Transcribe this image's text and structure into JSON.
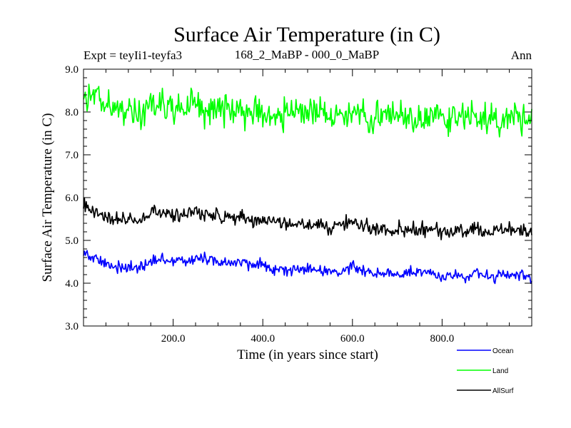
{
  "chart_data": {
    "type": "line",
    "title": "Surface Air Temperature (in C)",
    "subtitle_left": "Expt = teyIi1-teyfa3",
    "subtitle_center": "168_2_MaBP - 000_0_MaBP",
    "subtitle_right": "Ann",
    "xlabel": "Time (in years since start)",
    "ylabel": "Surface Air Temperature (in C)",
    "xlim": [
      0,
      1000
    ],
    "ylim": [
      3.0,
      9.0
    ],
    "xticks": [
      200,
      400,
      600,
      800
    ],
    "xtick_labels": [
      "200.0",
      "400.0",
      "600.0",
      "800.0"
    ],
    "yticks": [
      3,
      4,
      5,
      6,
      7,
      8,
      9
    ],
    "ytick_labels": [
      "3.0",
      "4.0",
      "5.0",
      "6.0",
      "7.0",
      "8.0",
      "9.0"
    ],
    "legend_position": "below-right",
    "series": [
      {
        "name": "Ocean",
        "color": "#0000ff",
        "x": [
          0,
          25,
          50,
          75,
          100,
          125,
          150,
          175,
          200,
          225,
          250,
          275,
          300,
          325,
          350,
          375,
          400,
          425,
          450,
          475,
          500,
          525,
          550,
          575,
          600,
          625,
          650,
          675,
          700,
          725,
          750,
          775,
          800,
          825,
          850,
          875,
          900,
          925,
          950,
          975,
          1000
        ],
        "values": [
          4.75,
          4.55,
          4.45,
          4.4,
          4.35,
          4.35,
          4.5,
          4.55,
          4.55,
          4.5,
          4.6,
          4.55,
          4.5,
          4.45,
          4.5,
          4.4,
          4.45,
          4.35,
          4.3,
          4.35,
          4.3,
          4.3,
          4.25,
          4.3,
          4.4,
          4.3,
          4.25,
          4.25,
          4.2,
          4.25,
          4.2,
          4.25,
          4.15,
          4.2,
          4.15,
          4.25,
          4.15,
          4.15,
          4.2,
          4.15,
          4.1
        ]
      },
      {
        "name": "Land",
        "color": "#00ff00",
        "x": [
          0,
          25,
          50,
          75,
          100,
          125,
          150,
          175,
          200,
          225,
          250,
          275,
          300,
          325,
          350,
          375,
          400,
          425,
          450,
          475,
          500,
          525,
          550,
          575,
          600,
          625,
          650,
          675,
          700,
          725,
          750,
          775,
          800,
          825,
          850,
          875,
          900,
          925,
          950,
          975,
          1000
        ],
        "values": [
          8.55,
          8.4,
          8.2,
          8.05,
          8.0,
          8.0,
          8.15,
          8.2,
          8.1,
          8.1,
          8.2,
          8.1,
          8.05,
          8.05,
          8.05,
          8.0,
          8.0,
          7.95,
          7.95,
          8.0,
          8.0,
          7.95,
          7.95,
          7.9,
          8.0,
          7.95,
          7.9,
          7.95,
          7.9,
          7.9,
          7.8,
          7.9,
          7.9,
          7.85,
          7.85,
          7.9,
          7.85,
          7.8,
          7.85,
          7.85,
          7.85
        ]
      },
      {
        "name": "AllSurf",
        "color": "#000000",
        "x": [
          0,
          25,
          50,
          75,
          100,
          125,
          150,
          175,
          200,
          225,
          250,
          275,
          300,
          325,
          350,
          375,
          400,
          425,
          450,
          475,
          500,
          525,
          550,
          575,
          600,
          625,
          650,
          675,
          700,
          725,
          750,
          775,
          800,
          825,
          850,
          875,
          900,
          925,
          950,
          975,
          1000
        ],
        "values": [
          5.85,
          5.65,
          5.55,
          5.5,
          5.45,
          5.45,
          5.6,
          5.65,
          5.6,
          5.55,
          5.7,
          5.6,
          5.55,
          5.5,
          5.55,
          5.45,
          5.5,
          5.4,
          5.35,
          5.4,
          5.4,
          5.35,
          5.3,
          5.35,
          5.45,
          5.35,
          5.3,
          5.3,
          5.25,
          5.3,
          5.25,
          5.3,
          5.2,
          5.25,
          5.2,
          5.3,
          5.2,
          5.2,
          5.25,
          5.2,
          5.2
        ]
      }
    ]
  }
}
